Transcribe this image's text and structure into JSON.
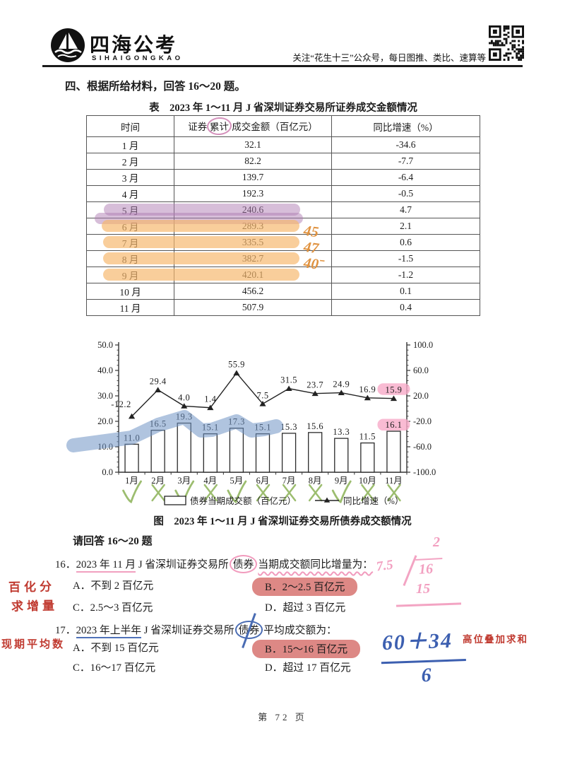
{
  "header": {
    "logo": {
      "title": "四海公考",
      "subtitle": "SIHAIGONGKAO",
      "icon": "sailboat-icon"
    },
    "tagline": "关注“花生十三”公众号，每日图推、类比、速算等",
    "qr_icon": "qr-code"
  },
  "section": {
    "heading": "四、根据所给材料，回答 16～20 题。"
  },
  "table": {
    "title": "表　2023 年 1～11 月 J 省深圳证券交易所证券成交金额情况",
    "columns": [
      "时间",
      "证券累计成交金额（百亿元）",
      "同比增速（%）"
    ],
    "header_col2_parts": [
      "证券",
      "累计",
      "成交金额（百亿元）"
    ],
    "rows": [
      {
        "month": "1 月",
        "amount": "32.1",
        "growth": "-34.6",
        "highlight": "none",
        "margin_note": ""
      },
      {
        "month": "2 月",
        "amount": "82.2",
        "growth": "-7.7",
        "highlight": "none",
        "margin_note": ""
      },
      {
        "month": "3 月",
        "amount": "139.7",
        "growth": "-6.4",
        "highlight": "none",
        "margin_note": ""
      },
      {
        "month": "4 月",
        "amount": "192.3",
        "growth": "-0.5",
        "highlight": "none",
        "margin_note": ""
      },
      {
        "month": "5 月",
        "amount": "240.6",
        "growth": "4.7",
        "highlight": "purple",
        "margin_note": ""
      },
      {
        "month": "6 月",
        "amount": "289.3",
        "growth": "2.1",
        "highlight": "purple-orange",
        "margin_note": ""
      },
      {
        "month": "7 月",
        "amount": "335.5",
        "growth": "0.6",
        "highlight": "orange",
        "margin_note": "45"
      },
      {
        "month": "8 月",
        "amount": "382.7",
        "growth": "-1.5",
        "highlight": "orange",
        "margin_note": "47"
      },
      {
        "month": "9 月",
        "amount": "420.1",
        "growth": "-1.2",
        "highlight": "orange",
        "margin_note": "40ˉ"
      },
      {
        "month": "10 月",
        "amount": "456.2",
        "growth": "0.1",
        "highlight": "none",
        "margin_note": ""
      },
      {
        "month": "11 月",
        "amount": "507.9",
        "growth": "0.4",
        "highlight": "none",
        "margin_note": ""
      }
    ]
  },
  "chart_data": {
    "type": "bar+line",
    "categories": [
      "1月",
      "2月",
      "3月",
      "4月",
      "5月",
      "6月",
      "7月",
      "8月",
      "9月",
      "10月",
      "11月"
    ],
    "series": [
      {
        "name": "债券当期成交额（百亿元）",
        "type": "bar",
        "axis": "left",
        "values": [
          11.0,
          16.5,
          19.3,
          15.1,
          17.3,
          15.1,
          15.3,
          15.6,
          13.3,
          11.5,
          16.1
        ]
      },
      {
        "name": "同比增速（%）",
        "type": "line",
        "axis": "right",
        "values": [
          -12.2,
          29.4,
          4.0,
          1.4,
          55.9,
          7.5,
          31.5,
          23.7,
          24.9,
          16.9,
          15.9
        ]
      }
    ],
    "left_axis": {
      "min": 0,
      "max": 50,
      "ticks": [
        "0.0",
        "10.0",
        "20.0",
        "30.0",
        "40.0",
        "50.0"
      ]
    },
    "right_axis": {
      "min": -100,
      "max": 100,
      "ticks": [
        "-100.0",
        "-60.0",
        "-20.0",
        "20.0",
        "60.0",
        "100.0"
      ]
    },
    "legend_position": "bottom",
    "caption": "图　2023 年 1～11 月 J 省深圳证券交易所债券成交额情况",
    "annotations": {
      "check_marks": [
        "check",
        "cross",
        "check",
        "cross",
        "check",
        "cross",
        "cross",
        "cross",
        "check",
        "cross",
        "cross"
      ],
      "blue_highlight_months": [
        1,
        2,
        3,
        4,
        5,
        6
      ],
      "pink_highlight_labels": [
        "15.9",
        "16.1"
      ]
    }
  },
  "questions": {
    "intro": "请回答 16～20 题",
    "q16": {
      "parts": [
        {
          "text": "16．",
          "style": "plain"
        },
        {
          "text": "2023 年 11 月",
          "style": "u-pink"
        },
        {
          "text": " J 省深圳证券交易所",
          "style": "plain"
        },
        {
          "text": "债券",
          "style": "circ-pink"
        },
        {
          "text": "当期成交额同比增量为：",
          "style": "wavy-pink"
        }
      ],
      "options": [
        {
          "label": "A．不到 2 百亿元",
          "highlight": false
        },
        {
          "label": "B．2～2.5 百亿元",
          "highlight": true
        },
        {
          "label": "C．2.5～3 百亿元",
          "highlight": false
        },
        {
          "label": "D．超过 3 百亿元",
          "highlight": false
        }
      ]
    },
    "q17": {
      "parts": [
        {
          "text": "17．",
          "style": "plain"
        },
        {
          "text": "2023 年上半年",
          "style": "u-blue"
        },
        {
          "text": " J 省深圳证券交易所",
          "style": "plain"
        },
        {
          "text": "债券",
          "style": "circ-blue"
        },
        {
          "text": "平均成交额为：",
          "style": "plain"
        }
      ],
      "options": [
        {
          "label": "A．不到 15 百亿元",
          "highlight": false
        },
        {
          "label": "B．15～16 百亿元",
          "highlight": true
        },
        {
          "label": "C．16～17 百亿元",
          "highlight": false
        },
        {
          "label": "D．超过 17 百亿元",
          "highlight": false
        }
      ]
    }
  },
  "annotations": {
    "q16_margin_line1": "百化分",
    "q16_margin_line2": "求增量",
    "q16_long_division": {
      "quotient": "2",
      "divisor": "7.5",
      "dividend": "16",
      "remainder": "15"
    },
    "q17_margin_note": "现期平均数",
    "q17_fraction": {
      "numerator": "60＋34",
      "denominator": "6"
    },
    "q17_side_note": "高位叠加求和",
    "colors": {
      "purple_highlight": "#b07db4",
      "orange_highlight": "#f6b76c",
      "pink_label_highlight": "#f7aac8",
      "answer_highlight": "#d87874",
      "blue_marker": "#6f93c4",
      "green_pen": "#9cbd6f",
      "red_pen": "#c03a30",
      "pink_pen": "#f29fc0",
      "blue_pen": "#3c5fb0",
      "orange_pen": "#e0923f"
    }
  },
  "footer": {
    "page_number": "第 72 页"
  }
}
